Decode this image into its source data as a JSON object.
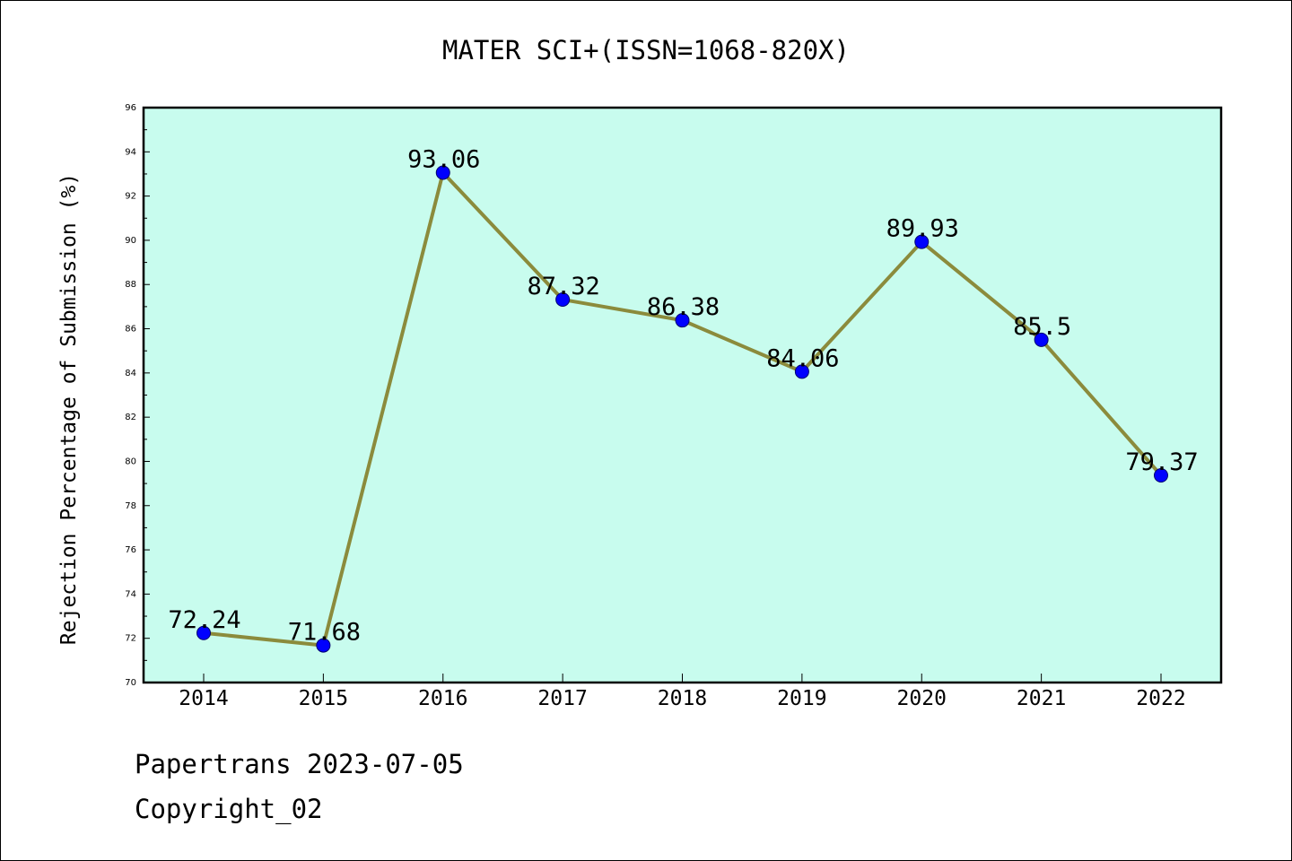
{
  "chart_data": {
    "type": "line",
    "title": "MATER SCI+(ISSN=1068-820X)",
    "xlabel": "",
    "ylabel": "Rejection Percentage of Submission (%)",
    "categories": [
      "2014",
      "2015",
      "2016",
      "2017",
      "2018",
      "2019",
      "2020",
      "2021",
      "2022"
    ],
    "values": [
      72.24,
      71.68,
      93.06,
      87.32,
      86.38,
      84.06,
      89.93,
      85.5,
      79.37
    ],
    "data_labels": [
      "72.24",
      "71.68",
      "93.06",
      "87.32",
      "86.38",
      "84.06",
      "89.93",
      "85.5",
      "79.37"
    ],
    "ylim": [
      70,
      96
    ],
    "yticks": [
      "70",
      "72",
      "74",
      "76",
      "78",
      "80",
      "82",
      "84",
      "86",
      "88",
      "90",
      "92",
      "94",
      "96"
    ],
    "grid": false,
    "legend": "none",
    "colors": {
      "plot_background": "#c8fcee",
      "line": "#8b8b3c",
      "marker": "#0000ff",
      "axes": "#000000"
    }
  },
  "footer": {
    "line1": "Papertrans 2023-07-05",
    "line2": "Copyright_02"
  }
}
